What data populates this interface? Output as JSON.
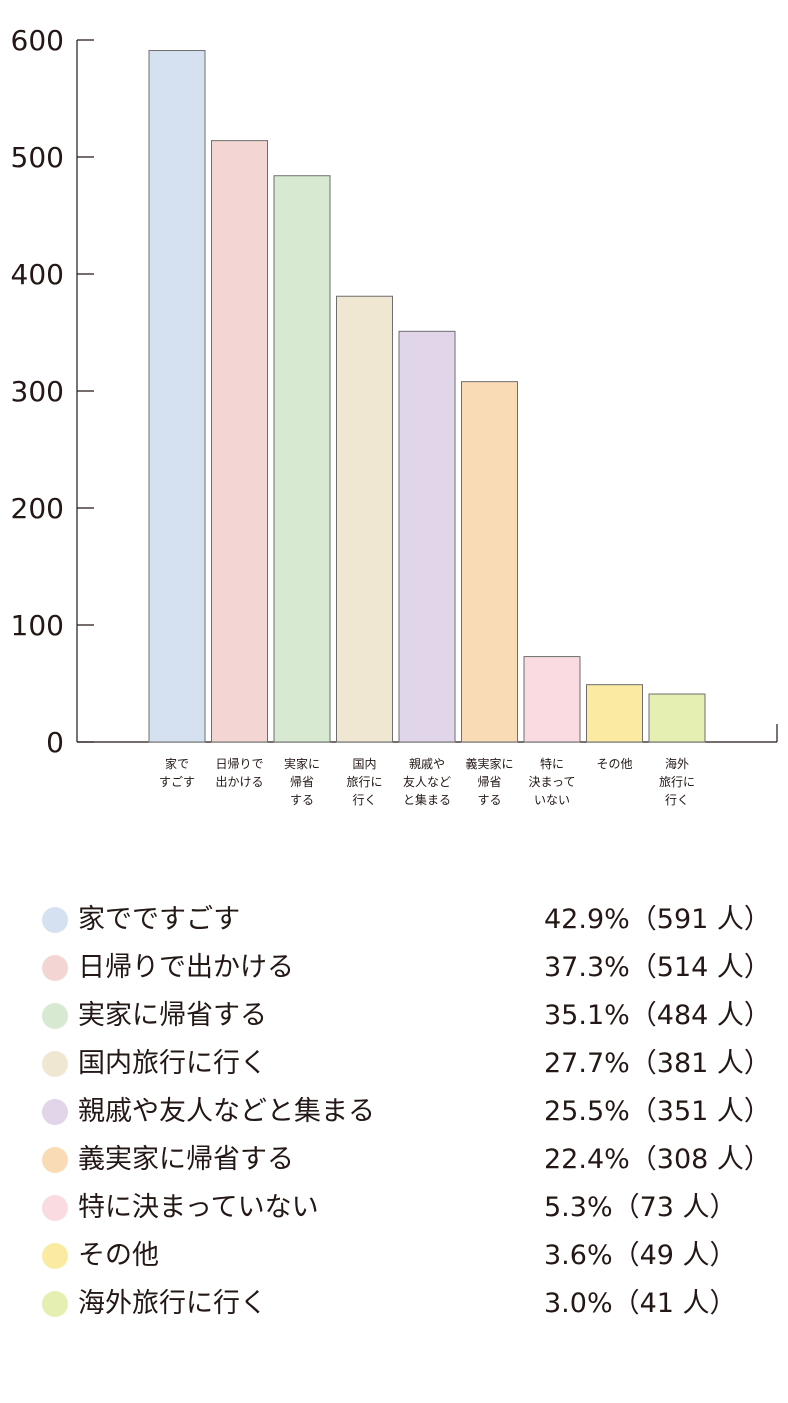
{
  "chart_data": {
    "type": "bar",
    "categories": [
      "家ですごす",
      "日帰りで出かける",
      "実家に帰省する",
      "国内旅行に行く",
      "親戚や友人などと集まる",
      "義実家に帰省する",
      "特に決まっていない",
      "その他",
      "海外旅行に行く"
    ],
    "category_tick_labels": [
      "家で\nすごす",
      "日帰りで\n出かける",
      "実家に\n帰省\nする",
      "国内\n旅行に\n行く",
      "親戚や\n友人など\nと集まる",
      "義実家に\n帰省\nする",
      "特に\n決まって\nいない",
      "その他",
      "海外\n旅行に\n行く"
    ],
    "values": [
      591,
      514,
      484,
      381,
      351,
      308,
      73,
      49,
      41
    ],
    "colors": [
      "#d5e1f1",
      "#f3d6d3",
      "#d8e9d2",
      "#f0e7d2",
      "#e1d5e9",
      "#f9dcb6",
      "#f9dbe1",
      "#fbeaa2",
      "#e6efb2"
    ],
    "ylim": [
      0,
      600
    ],
    "yticks": [
      0,
      100,
      200,
      300,
      400,
      500,
      600
    ],
    "grid": false
  },
  "legend": [
    {
      "name": "家でですごす",
      "value": "42.9%（591 人）"
    },
    {
      "name": "日帰りで出かける",
      "value": "37.3%（514 人）"
    },
    {
      "name": "実家に帰省する",
      "value": "35.1%（484 人）"
    },
    {
      "name": "国内旅行に行く",
      "value": "27.7%（381 人）"
    },
    {
      "name": "親戚や友人などと集まる",
      "value": "25.5%（351 人）"
    },
    {
      "name": "義実家に帰省する",
      "value": "22.4%（308 人）"
    },
    {
      "name": "特に決まっていない",
      "value": "5.3%（73 人）"
    },
    {
      "name": "その他",
      "value": "3.6%（49 人）"
    },
    {
      "name": "海外旅行に行く",
      "value": "3.0%（41 人）"
    }
  ]
}
